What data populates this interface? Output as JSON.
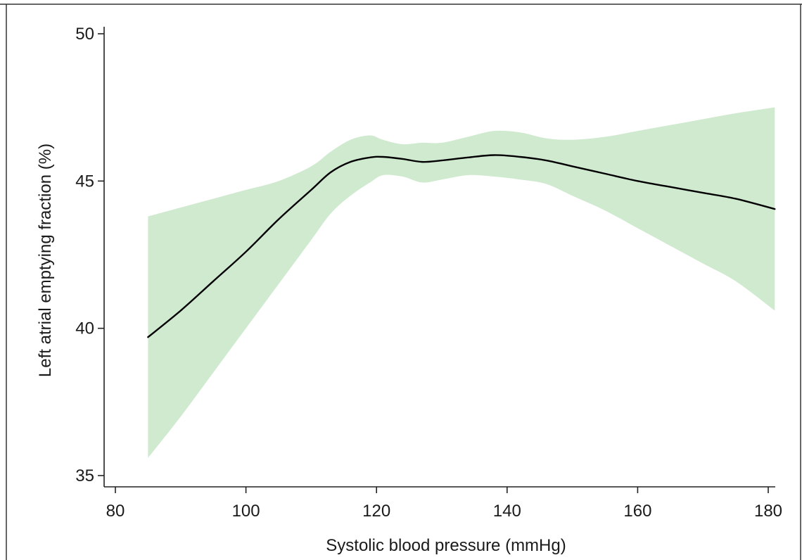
{
  "chart_data": {
    "type": "line",
    "title": "",
    "xlabel": "Systolic blood pressure (mmHg)",
    "ylabel": "Left atrial emptying fraction (%)",
    "xlim": [
      80,
      180
    ],
    "ylim": [
      35,
      50
    ],
    "xticks": [
      80,
      100,
      120,
      140,
      160,
      180
    ],
    "yticks": [
      35,
      40,
      45,
      50
    ],
    "grid": false,
    "legend": "none",
    "colors": {
      "line": "#000000",
      "band": "#d0ead0",
      "axis": "#222222"
    },
    "series": [
      {
        "x": [
          85,
          90,
          95,
          100,
          105,
          110,
          113,
          116,
          119,
          121,
          124,
          127,
          130,
          134,
          138,
          142,
          146,
          150,
          155,
          160,
          165,
          170,
          175,
          181
        ],
        "y": [
          39.7,
          40.6,
          41.6,
          42.6,
          43.7,
          44.7,
          45.3,
          45.65,
          45.8,
          45.82,
          45.75,
          45.65,
          45.7,
          45.8,
          45.88,
          45.82,
          45.7,
          45.5,
          45.25,
          45.0,
          44.8,
          44.6,
          44.4,
          44.05
        ]
      }
    ],
    "bands": [
      {
        "x": [
          85,
          90,
          95,
          100,
          105,
          110,
          113,
          116,
          119,
          121,
          124,
          127,
          130,
          134,
          138,
          142,
          146,
          150,
          155,
          160,
          165,
          170,
          175,
          181
        ],
        "lower": [
          35.6,
          37.0,
          38.5,
          40.0,
          41.5,
          43.0,
          43.9,
          44.5,
          44.95,
          45.2,
          45.15,
          44.95,
          45.05,
          45.2,
          45.15,
          45.05,
          44.9,
          44.5,
          44.0,
          43.4,
          42.8,
          42.2,
          41.6,
          40.6
        ],
        "upper": [
          43.8,
          44.1,
          44.4,
          44.7,
          45.0,
          45.5,
          46.0,
          46.4,
          46.55,
          46.4,
          46.25,
          46.3,
          46.3,
          46.5,
          46.7,
          46.65,
          46.45,
          46.4,
          46.5,
          46.7,
          46.9,
          47.1,
          47.3,
          47.5
        ]
      }
    ]
  }
}
